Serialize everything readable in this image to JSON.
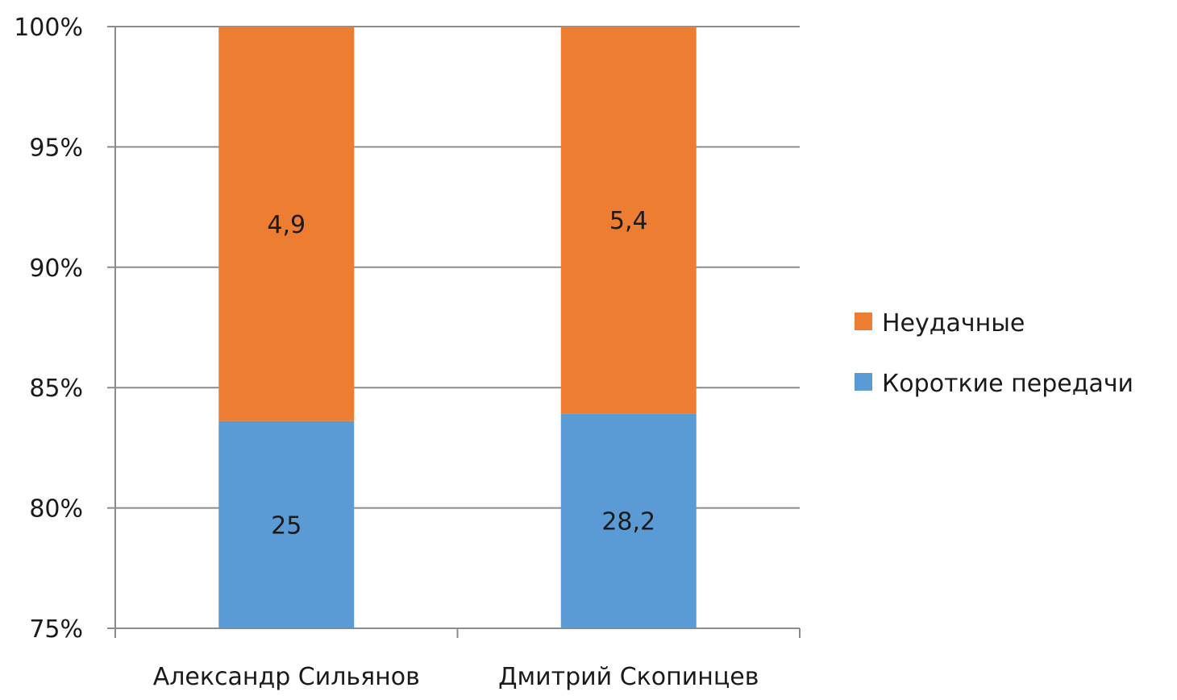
{
  "chart_data": {
    "type": "bar",
    "stacked": "percent",
    "categories": [
      "Александр Сильянов",
      "Дмитрий Скопинцев"
    ],
    "series": [
      {
        "name": "Короткие передачи",
        "values": [
          25,
          28.2
        ],
        "labels": [
          "25",
          "28,2"
        ],
        "color": "#5b9bd5"
      },
      {
        "name": "Неудачные",
        "values": [
          4.9,
          5.4
        ],
        "labels": [
          "4,9",
          "5,4"
        ],
        "color": "#ed7d31"
      }
    ],
    "ylim": [
      75,
      100
    ],
    "yticks": [
      {
        "value": 75,
        "label": "75%"
      },
      {
        "value": 80,
        "label": "80%"
      },
      {
        "value": 85,
        "label": "85%"
      },
      {
        "value": 90,
        "label": "90%"
      },
      {
        "value": 95,
        "label": "95%"
      },
      {
        "value": 100,
        "label": "100%"
      }
    ],
    "legend_order": [
      "Неудачные",
      "Короткие передачи"
    ],
    "legend_position": "right",
    "grid": true
  }
}
